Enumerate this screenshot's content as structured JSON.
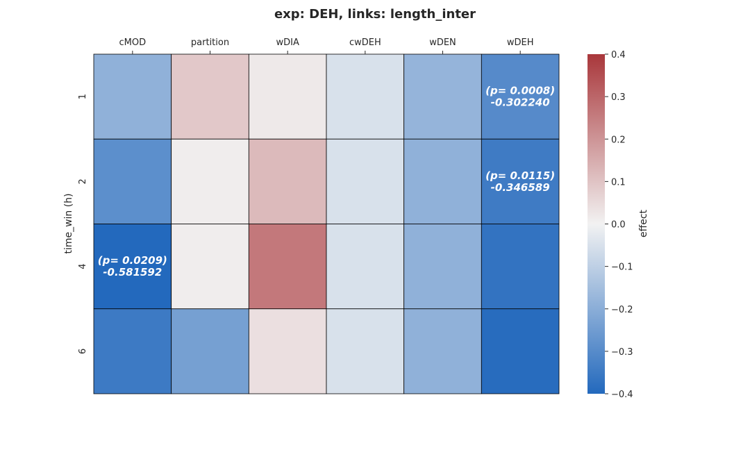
{
  "chart_data": {
    "type": "heatmap",
    "title": "exp: DEH, links: length_inter",
    "xlabel": "",
    "ylabel": "time_win (h)",
    "x_position": "top",
    "columns": [
      "cMOD",
      "partition",
      "wDIA",
      "cwDEH",
      "wDEN",
      "wDEH"
    ],
    "rows": [
      "1",
      "2",
      "4",
      "6"
    ],
    "values": [
      [
        -0.19,
        0.09,
        0.02,
        -0.05,
        -0.18,
        -0.30224
      ],
      [
        -0.29,
        0.01,
        0.12,
        -0.05,
        -0.19,
        -0.346589
      ],
      [
        -0.581592,
        0.01,
        0.26,
        -0.05,
        -0.19,
        -0.37
      ],
      [
        -0.35,
        -0.24,
        0.04,
        -0.05,
        -0.19,
        -0.39
      ]
    ],
    "annotations": [
      {
        "row": 0,
        "col": 5,
        "lines": [
          "(p= 0.0008)",
          "-0.302240"
        ]
      },
      {
        "row": 1,
        "col": 5,
        "lines": [
          "(p= 0.0115)",
          "-0.346589"
        ]
      },
      {
        "row": 2,
        "col": 0,
        "lines": [
          "(p= 0.0209)",
          "-0.581592"
        ]
      }
    ],
    "colorbar": {
      "label": "effect",
      "vmin": -0.4,
      "vmax": 0.4,
      "ticks": [
        0.4,
        0.3,
        0.2,
        0.1,
        0.0,
        -0.1,
        -0.2,
        -0.3,
        -0.4
      ],
      "tick_labels": [
        "0.4",
        "0.3",
        "0.2",
        "0.1",
        "0.0",
        "−0.1",
        "−0.2",
        "−0.3",
        "−0.4"
      ],
      "colormap": "vlag",
      "color_low": "#2369bd",
      "color_mid": "#f2f2f2",
      "color_high": "#a9373b"
    },
    "grid": true,
    "cell_border_color": "#000000"
  }
}
